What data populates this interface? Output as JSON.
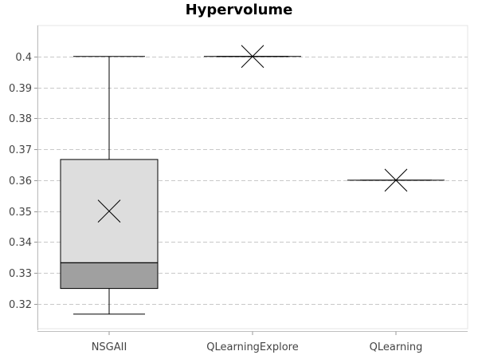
{
  "chart_data": {
    "type": "box",
    "title": "Hypervolume",
    "xlabel": "",
    "ylabel": "",
    "ylim": [
      0.312,
      0.41
    ],
    "yticks": [
      0.32,
      0.33,
      0.34,
      0.35,
      0.36,
      0.37,
      0.38,
      0.39,
      0.4
    ],
    "ytick_labels": [
      "0.32",
      "0.33",
      "0.34",
      "0.35",
      "0.36",
      "0.37",
      "0.38",
      "0.39",
      "0.4"
    ],
    "grid": true,
    "categories": [
      "NSGAII",
      "QLearningExplore",
      "QLearning"
    ],
    "boxes": [
      {
        "category": "NSGAII",
        "min": 0.3167,
        "q1": 0.325,
        "median": 0.3333,
        "q3": 0.3667,
        "max": 0.4,
        "mean": 0.35
      },
      {
        "category": "QLearningExplore",
        "min": 0.4,
        "q1": 0.4,
        "median": 0.4,
        "q3": 0.4,
        "max": 0.4,
        "mean": 0.4
      },
      {
        "category": "QLearning",
        "min": 0.36,
        "q1": 0.36,
        "median": 0.36,
        "q3": 0.36,
        "max": 0.36,
        "mean": 0.36
      }
    ],
    "colors": {
      "upper_box": "#dddddd",
      "lower_box": "#a0a0a0",
      "grid": "#c8c8c8",
      "axis": "#c0c0c0"
    }
  }
}
